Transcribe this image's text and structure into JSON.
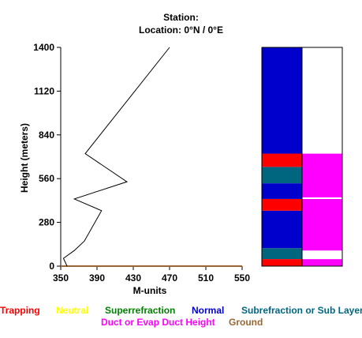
{
  "header": {
    "station_line": "Station:",
    "location_line": "Location:   0°N /   0°E"
  },
  "chart_data": {
    "type": "line",
    "xlabel": "M-units",
    "ylabel": "Height (meters)",
    "xlim": [
      350,
      550
    ],
    "ylim": [
      0,
      1400
    ],
    "x_ticks": [
      "350",
      "390",
      "430",
      "470",
      "510",
      "550"
    ],
    "y_ticks": [
      "0",
      "280",
      "560",
      "840",
      "1120",
      "1400"
    ],
    "series": [
      {
        "x": [
          357,
          353,
          365,
          376,
          395,
          365,
          423,
          377,
          470
        ],
        "y": [
          0,
          50,
          100,
          160,
          355,
          430,
          540,
          720,
          1400
        ],
        "color": "#000000"
      }
    ],
    "ground_line": {
      "y": 0,
      "color": "#996633"
    },
    "layer_bars": [
      {
        "segments": [
          {
            "from": 0,
            "to": 45,
            "type": "Trapping"
          },
          {
            "from": 45,
            "to": 115,
            "type": "Subrefraction or Sub Layer"
          },
          {
            "from": 115,
            "to": 355,
            "type": "Normal"
          },
          {
            "from": 355,
            "to": 430,
            "type": "Trapping"
          },
          {
            "from": 430,
            "to": 530,
            "type": "Normal"
          },
          {
            "from": 530,
            "to": 635,
            "type": "Subrefraction or Sub Layer"
          },
          {
            "from": 635,
            "to": 720,
            "type": "Trapping"
          },
          {
            "from": 720,
            "to": 1400,
            "type": "Normal"
          }
        ]
      },
      {
        "segments": [
          {
            "from": 0,
            "to": 45,
            "type": "Duct or Evap Duct Height"
          },
          {
            "from": 45,
            "to": 100,
            "type": "none"
          },
          {
            "from": 100,
            "to": 430,
            "type": "Duct or Evap Duct Height"
          },
          {
            "from": 430,
            "to": 440,
            "type": "none"
          },
          {
            "from": 440,
            "to": 720,
            "type": "Duct or Evap Duct Height"
          },
          {
            "from": 720,
            "to": 1400,
            "type": "none"
          }
        ]
      }
    ],
    "legend": [
      {
        "label": "Trapping",
        "color": "#ff0000"
      },
      {
        "label": "Neutral",
        "color": "#ffff00"
      },
      {
        "label": "Superrefraction",
        "color": "#008000"
      },
      {
        "label": "Normal",
        "color": "#0000cc"
      },
      {
        "label": "Subrefraction or Sub Layer",
        "color": "#006680"
      },
      {
        "label": "Duct or Evap Duct Height",
        "color": "#ff00ff"
      },
      {
        "label": "Ground",
        "color": "#996633"
      }
    ],
    "grid": false
  }
}
